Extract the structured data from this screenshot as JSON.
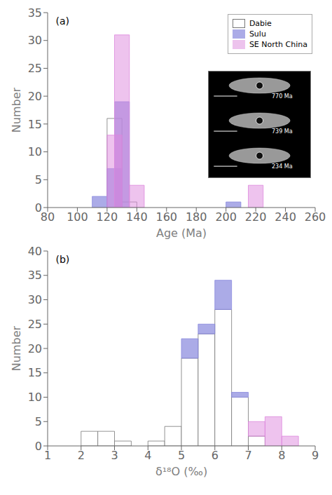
{
  "chart_data": [
    {
      "type": "bar",
      "title": "(a)",
      "xlabel": "Age (Ma)",
      "ylabel": "Number",
      "bin_width": 10,
      "xlim": [
        80,
        260
      ],
      "ylim": [
        0,
        35
      ],
      "xticks": [
        80,
        100,
        120,
        140,
        160,
        180,
        200,
        220,
        240,
        260
      ],
      "yticks": [
        0,
        5,
        10,
        15,
        20,
        25,
        30,
        35
      ],
      "stacked": false,
      "grid": false,
      "legend": "upper right",
      "annotations": [
        "770 Ma",
        "739 Ma",
        "234 Ma"
      ],
      "series": [
        {
          "name": "Dabie",
          "color": "white",
          "x": [
            120,
            130
          ],
          "values": [
            16,
            1
          ]
        },
        {
          "name": "Sulu",
          "color": "#8888dd",
          "x": [
            110,
            120,
            125,
            200
          ],
          "values": [
            2,
            7,
            19,
            1
          ]
        },
        {
          "name": "SE North China",
          "color": "#dd88dd",
          "x": [
            120,
            125,
            135,
            215
          ],
          "values": [
            13,
            31,
            4,
            4
          ]
        }
      ]
    },
    {
      "type": "bar",
      "title": "(b)",
      "xlabel": "δ¹⁸O (‰)",
      "ylabel": "Number",
      "bin_width": 0.5,
      "xlim": [
        1,
        9
      ],
      "ylim": [
        0,
        40
      ],
      "xticks": [
        1,
        2,
        3,
        4,
        5,
        6,
        7,
        8,
        9
      ],
      "yticks": [
        0,
        5,
        10,
        15,
        20,
        25,
        30,
        35,
        40
      ],
      "stacked": true,
      "grid": false,
      "series": [
        {
          "name": "Dabie",
          "color": "white",
          "x": [
            2.0,
            2.5,
            3.0,
            4.0,
            4.5,
            5.0,
            5.5,
            6.0,
            6.5,
            7.0
          ],
          "values": [
            3,
            3,
            1,
            1,
            4,
            18,
            23,
            28,
            10,
            2
          ]
        },
        {
          "name": "Sulu",
          "color": "#8888dd",
          "x": [
            5.0,
            5.5,
            6.0,
            6.5
          ],
          "values": [
            4,
            2,
            6,
            1
          ]
        },
        {
          "name": "SE North China",
          "color": "#dd88dd",
          "x": [
            7.0,
            7.5,
            8.0
          ],
          "values": [
            3,
            6,
            2
          ]
        }
      ]
    }
  ]
}
